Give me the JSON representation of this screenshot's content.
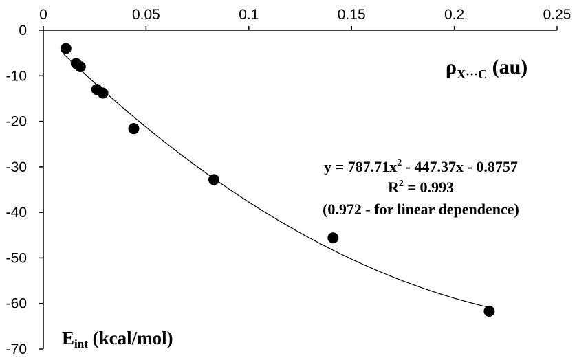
{
  "chart_data": {
    "type": "scatter",
    "xlabel": {
      "main": "ρ",
      "sub": "X···C",
      "rest": " (au)"
    },
    "ylabel": {
      "main": "E",
      "sub": "int",
      "rest": " (kcal/mol)"
    },
    "xlim": [
      0,
      0.25
    ],
    "ylim": [
      -70,
      0
    ],
    "x_ticks": [
      0,
      0.05,
      0.1,
      0.15,
      0.2,
      0.25
    ],
    "x_tick_labels": [
      "0",
      "0.05",
      "0.1",
      "0.15",
      "0.2",
      "0.25"
    ],
    "y_ticks": [
      0,
      -10,
      -20,
      -30,
      -40,
      -50,
      -60,
      -70
    ],
    "y_tick_labels": [
      "0",
      "-10",
      "-20",
      "-30",
      "-40",
      "-50",
      "-60",
      "-70"
    ],
    "x_axis_position": "top",
    "grid": false,
    "series": [
      {
        "points": [
          {
            "x": 0.011,
            "y": -4.0
          },
          {
            "x": 0.016,
            "y": -7.3
          },
          {
            "x": 0.018,
            "y": -8.0
          },
          {
            "x": 0.026,
            "y": -13.0
          },
          {
            "x": 0.029,
            "y": -13.8
          },
          {
            "x": 0.044,
            "y": -21.6
          },
          {
            "x": 0.083,
            "y": -32.8
          },
          {
            "x": 0.141,
            "y": -45.6
          },
          {
            "x": 0.217,
            "y": -61.7
          }
        ]
      }
    ],
    "trendline": {
      "type": "polynomial",
      "coefficients": {
        "a": 787.71,
        "b": -447.37,
        "c": -0.8757
      },
      "x_range": [
        0.01,
        0.217
      ]
    },
    "annotations": {
      "equation": {
        "base": "y = 787.71x",
        "sup": "2",
        "rest": " - 447.37x - 0.8757"
      },
      "r_squared": {
        "base": "R",
        "sup": "2",
        "rest": " = 0.993"
      },
      "note": "(0.972 - for linear dependence)"
    },
    "colors": {
      "marker": "#000000",
      "line": "#000000",
      "axis": "#000000"
    }
  }
}
